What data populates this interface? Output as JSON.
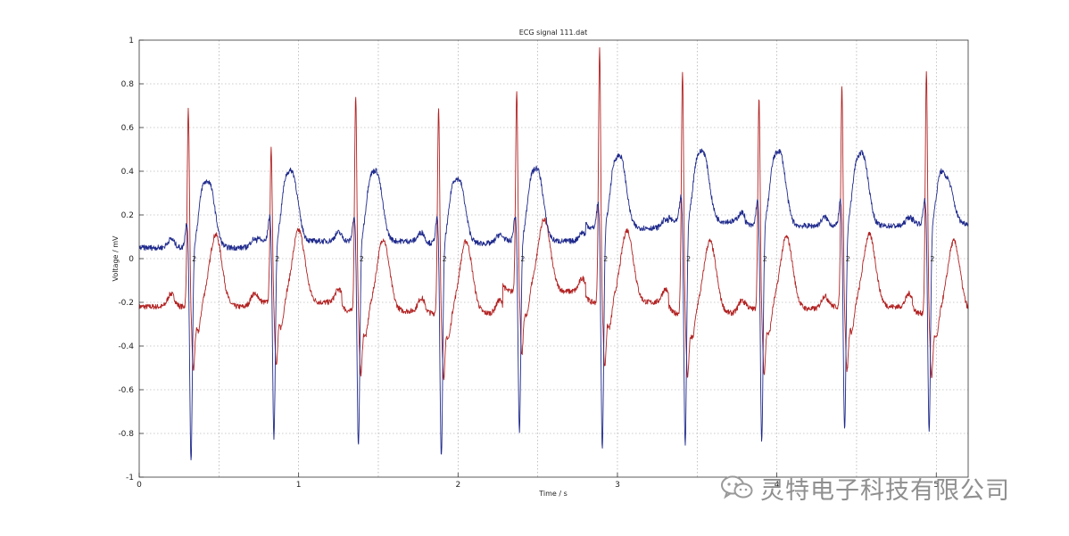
{
  "chart_data": {
    "type": "line",
    "title": "ECG signal 111.dat",
    "xlabel": "Time / s",
    "ylabel": "Voltage / mV",
    "xlim": [
      0,
      5.2
    ],
    "ylim": [
      -1,
      1
    ],
    "xticks": [
      0,
      1,
      2,
      3,
      4,
      5
    ],
    "yticks": [
      -1,
      -0.8,
      -0.6,
      -0.4,
      -0.2,
      0,
      0.2,
      0.4,
      0.6,
      0.8,
      1
    ],
    "grid": true,
    "colors": {
      "series1": "#1f2a8c",
      "series2": "#b22222"
    },
    "beat_marker": "2",
    "beat_times": [
      0.32,
      0.84,
      1.37,
      1.89,
      2.38,
      2.9,
      3.42,
      3.9,
      4.42,
      4.95
    ],
    "beats": [
      {
        "t": 0.32,
        "up": 0.68,
        "down": -0.93,
        "t_wave": 0.39,
        "s1_base": 0.05,
        "s2_base": -0.22
      },
      {
        "t": 0.84,
        "up": 0.5,
        "down": -0.83,
        "t_wave": 0.44,
        "s1_base": 0.08,
        "s2_base": -0.2
      },
      {
        "t": 1.37,
        "up": 0.75,
        "down": -0.87,
        "t_wave": 0.44,
        "s1_base": 0.08,
        "s2_base": -0.24
      },
      {
        "t": 1.89,
        "up": 0.68,
        "down": -0.92,
        "t_wave": 0.4,
        "s1_base": 0.07,
        "s2_base": -0.25
      },
      {
        "t": 2.38,
        "up": 0.76,
        "down": -0.8,
        "t_wave": 0.45,
        "s1_base": 0.08,
        "s2_base": -0.15
      },
      {
        "t": 2.9,
        "up": 0.96,
        "down": -0.87,
        "t_wave": 0.51,
        "s1_base": 0.14,
        "s2_base": -0.2
      },
      {
        "t": 3.42,
        "up": 0.86,
        "down": -0.86,
        "t_wave": 0.53,
        "s1_base": 0.17,
        "s2_base": -0.25
      },
      {
        "t": 3.9,
        "up": 0.73,
        "down": -0.85,
        "t_wave": 0.53,
        "s1_base": 0.15,
        "s2_base": -0.23
      },
      {
        "t": 4.42,
        "up": 0.79,
        "down": -0.8,
        "t_wave": 0.52,
        "s1_base": 0.15,
        "s2_base": -0.22
      },
      {
        "t": 4.95,
        "up": 0.85,
        "down": -0.8,
        "t_wave": 0.41,
        "s1_base": 0.16,
        "s2_base": -0.25
      }
    ]
  },
  "watermark": {
    "text": "灵特电子科技有限公司",
    "icon": "wechat-icon"
  }
}
